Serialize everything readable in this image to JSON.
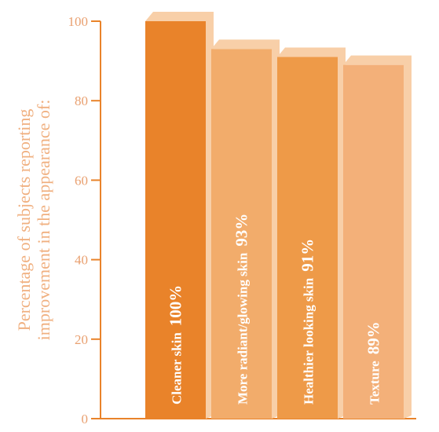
{
  "chart_data": {
    "type": "bar",
    "ylabel": [
      "Percentage of subjects reporting",
      "improvement in the appearance of:"
    ],
    "categories": [
      "Cleaner skin",
      "More  radiant/glowing skin",
      "Healthier looking skin",
      "Texture"
    ],
    "values": [
      100,
      93,
      91,
      89
    ],
    "value_labels": [
      "100%",
      "93%",
      "91%",
      "89%"
    ],
    "colors": [
      "#e9832a",
      "#f2ac6b",
      "#ee9a48",
      "#f3b079"
    ],
    "ylim": [
      0,
      100
    ],
    "yticks": [
      0,
      20,
      40,
      60,
      80,
      100
    ],
    "axis_color": "#e9832a"
  }
}
